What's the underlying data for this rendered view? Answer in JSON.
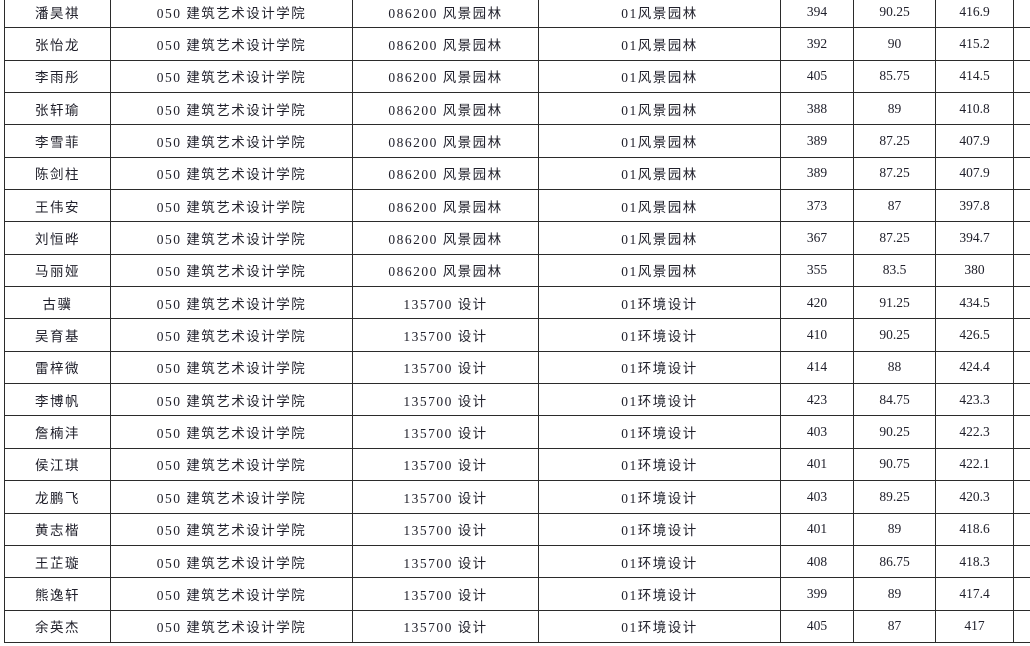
{
  "table": {
    "rows": [
      {
        "name": "潘昊祺",
        "college": "050 建筑艺术设计学院",
        "major": "086200 风景园林",
        "program": "01风景园林",
        "initial_score": "394",
        "retest_score": "90.25",
        "total_score": "416.9"
      },
      {
        "name": "张怡龙",
        "college": "050 建筑艺术设计学院",
        "major": "086200 风景园林",
        "program": "01风景园林",
        "initial_score": "392",
        "retest_score": "90",
        "total_score": "415.2"
      },
      {
        "name": "李雨彤",
        "college": "050 建筑艺术设计学院",
        "major": "086200 风景园林",
        "program": "01风景园林",
        "initial_score": "405",
        "retest_score": "85.75",
        "total_score": "414.5"
      },
      {
        "name": "张轩瑜",
        "college": "050 建筑艺术设计学院",
        "major": "086200 风景园林",
        "program": "01风景园林",
        "initial_score": "388",
        "retest_score": "89",
        "total_score": "410.8"
      },
      {
        "name": "李雪菲",
        "college": "050 建筑艺术设计学院",
        "major": "086200 风景园林",
        "program": "01风景园林",
        "initial_score": "389",
        "retest_score": "87.25",
        "total_score": "407.9"
      },
      {
        "name": "陈剑柱",
        "college": "050 建筑艺术设计学院",
        "major": "086200 风景园林",
        "program": "01风景园林",
        "initial_score": "389",
        "retest_score": "87.25",
        "total_score": "407.9"
      },
      {
        "name": "王伟安",
        "college": "050 建筑艺术设计学院",
        "major": "086200 风景园林",
        "program": "01风景园林",
        "initial_score": "373",
        "retest_score": "87",
        "total_score": "397.8"
      },
      {
        "name": "刘恒晔",
        "college": "050 建筑艺术设计学院",
        "major": "086200 风景园林",
        "program": "01风景园林",
        "initial_score": "367",
        "retest_score": "87.25",
        "total_score": "394.7"
      },
      {
        "name": "马丽娅",
        "college": "050 建筑艺术设计学院",
        "major": "086200 风景园林",
        "program": "01风景园林",
        "initial_score": "355",
        "retest_score": "83.5",
        "total_score": "380"
      },
      {
        "name": "古骥",
        "college": "050 建筑艺术设计学院",
        "major": "135700 设计",
        "program": "01环境设计",
        "initial_score": "420",
        "retest_score": "91.25",
        "total_score": "434.5"
      },
      {
        "name": "吴育基",
        "college": "050 建筑艺术设计学院",
        "major": "135700 设计",
        "program": "01环境设计",
        "initial_score": "410",
        "retest_score": "90.25",
        "total_score": "426.5"
      },
      {
        "name": "雷梓微",
        "college": "050 建筑艺术设计学院",
        "major": "135700 设计",
        "program": "01环境设计",
        "initial_score": "414",
        "retest_score": "88",
        "total_score": "424.4"
      },
      {
        "name": "李博帆",
        "college": "050 建筑艺术设计学院",
        "major": "135700 设计",
        "program": "01环境设计",
        "initial_score": "423",
        "retest_score": "84.75",
        "total_score": "423.3"
      },
      {
        "name": "詹楠沣",
        "college": "050 建筑艺术设计学院",
        "major": "135700 设计",
        "program": "01环境设计",
        "initial_score": "403",
        "retest_score": "90.25",
        "total_score": "422.3"
      },
      {
        "name": "侯江琪",
        "college": "050 建筑艺术设计学院",
        "major": "135700 设计",
        "program": "01环境设计",
        "initial_score": "401",
        "retest_score": "90.75",
        "total_score": "422.1"
      },
      {
        "name": "龙鹏飞",
        "college": "050 建筑艺术设计学院",
        "major": "135700 设计",
        "program": "01环境设计",
        "initial_score": "403",
        "retest_score": "89.25",
        "total_score": "420.3"
      },
      {
        "name": "黄志楷",
        "college": "050 建筑艺术设计学院",
        "major": "135700 设计",
        "program": "01环境设计",
        "initial_score": "401",
        "retest_score": "89",
        "total_score": "418.6"
      },
      {
        "name": "王芷璇",
        "college": "050 建筑艺术设计学院",
        "major": "135700 设计",
        "program": "01环境设计",
        "initial_score": "408",
        "retest_score": "86.75",
        "total_score": "418.3"
      },
      {
        "name": "熊逸轩",
        "college": "050 建筑艺术设计学院",
        "major": "135700 设计",
        "program": "01环境设计",
        "initial_score": "399",
        "retest_score": "89",
        "total_score": "417.4"
      },
      {
        "name": "余英杰",
        "college": "050 建筑艺术设计学院",
        "major": "135700 设计",
        "program": "01环境设计",
        "initial_score": "405",
        "retest_score": "87",
        "total_score": "417"
      }
    ]
  },
  "colors": {
    "text": "#20202b",
    "border": "#2b2b2b",
    "background": "#ffffff"
  }
}
